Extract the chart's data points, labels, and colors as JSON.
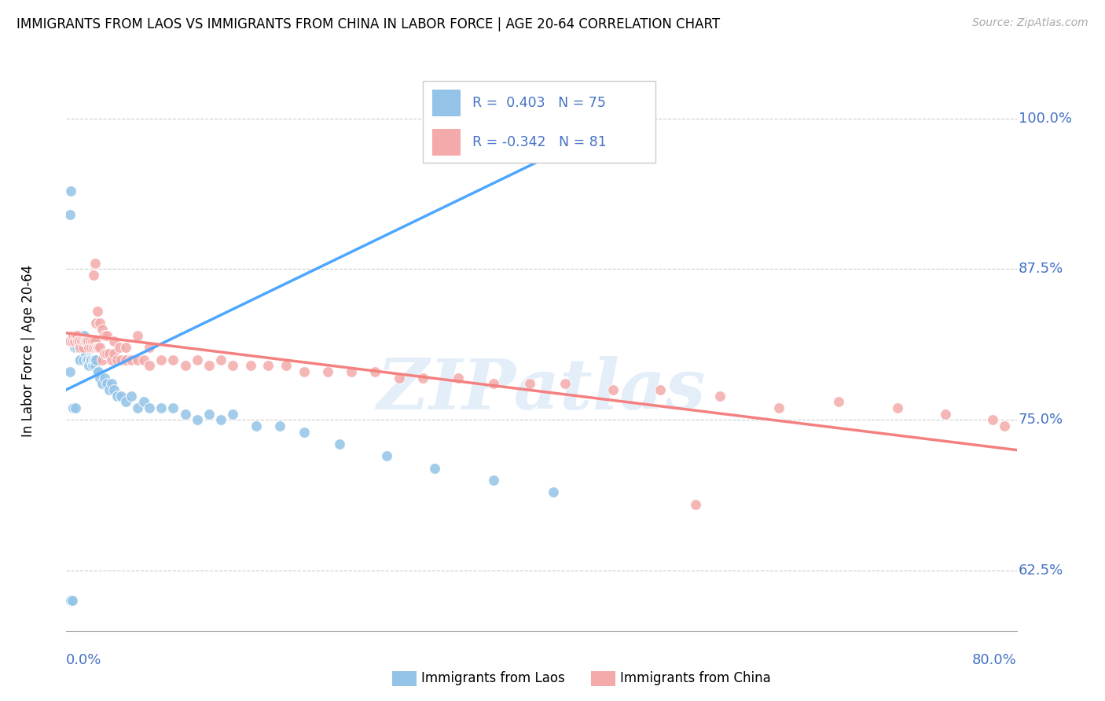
{
  "title": "IMMIGRANTS FROM LAOS VS IMMIGRANTS FROM CHINA IN LABOR FORCE | AGE 20-64 CORRELATION CHART",
  "source": "Source: ZipAtlas.com",
  "ylabel": "In Labor Force | Age 20-64",
  "ytick_labels": [
    "62.5%",
    "75.0%",
    "87.5%",
    "100.0%"
  ],
  "ytick_values": [
    0.625,
    0.75,
    0.875,
    1.0
  ],
  "xmin": 0.0,
  "xmax": 0.8,
  "ymin": 0.575,
  "ymax": 1.04,
  "laos_color": "#93c4e8",
  "china_color": "#f4aaaa",
  "laos_line_color": "#4da6ff",
  "china_line_color": "#f48080",
  "laos_R": 0.403,
  "laos_N": 75,
  "china_R": -0.342,
  "china_N": 81,
  "watermark": "ZIPatlas",
  "laos_scatter_x": [
    0.003,
    0.005,
    0.006,
    0.007,
    0.008,
    0.009,
    0.009,
    0.01,
    0.01,
    0.011,
    0.011,
    0.012,
    0.012,
    0.013,
    0.013,
    0.014,
    0.014,
    0.015,
    0.015,
    0.015,
    0.016,
    0.016,
    0.016,
    0.017,
    0.017,
    0.018,
    0.018,
    0.019,
    0.019,
    0.02,
    0.02,
    0.021,
    0.021,
    0.022,
    0.022,
    0.023,
    0.023,
    0.024,
    0.024,
    0.025,
    0.026,
    0.027,
    0.028,
    0.03,
    0.032,
    0.034,
    0.036,
    0.038,
    0.04,
    0.043,
    0.046,
    0.05,
    0.055,
    0.06,
    0.065,
    0.07,
    0.08,
    0.09,
    0.1,
    0.11,
    0.12,
    0.13,
    0.14,
    0.16,
    0.18,
    0.2,
    0.23,
    0.27,
    0.31,
    0.36,
    0.41,
    0.003,
    0.004,
    0.004,
    0.005
  ],
  "laos_scatter_y": [
    0.79,
    0.82,
    0.76,
    0.81,
    0.76,
    0.82,
    0.81,
    0.82,
    0.815,
    0.81,
    0.8,
    0.815,
    0.8,
    0.81,
    0.82,
    0.815,
    0.8,
    0.82,
    0.81,
    0.815,
    0.815,
    0.805,
    0.81,
    0.8,
    0.815,
    0.81,
    0.8,
    0.81,
    0.795,
    0.81,
    0.8,
    0.81,
    0.8,
    0.81,
    0.795,
    0.8,
    0.81,
    0.8,
    0.795,
    0.8,
    0.79,
    0.79,
    0.785,
    0.78,
    0.785,
    0.78,
    0.775,
    0.78,
    0.775,
    0.77,
    0.77,
    0.765,
    0.77,
    0.76,
    0.765,
    0.76,
    0.76,
    0.76,
    0.755,
    0.75,
    0.755,
    0.75,
    0.755,
    0.745,
    0.745,
    0.74,
    0.73,
    0.72,
    0.71,
    0.7,
    0.69,
    0.92,
    0.94,
    0.6,
    0.6
  ],
  "china_scatter_x": [
    0.003,
    0.005,
    0.006,
    0.007,
    0.008,
    0.009,
    0.01,
    0.011,
    0.012,
    0.013,
    0.014,
    0.015,
    0.016,
    0.017,
    0.018,
    0.019,
    0.02,
    0.021,
    0.022,
    0.023,
    0.024,
    0.025,
    0.026,
    0.027,
    0.028,
    0.03,
    0.032,
    0.034,
    0.036,
    0.038,
    0.04,
    0.043,
    0.046,
    0.05,
    0.055,
    0.06,
    0.065,
    0.07,
    0.08,
    0.09,
    0.1,
    0.11,
    0.12,
    0.13,
    0.14,
    0.155,
    0.17,
    0.185,
    0.2,
    0.22,
    0.24,
    0.26,
    0.28,
    0.3,
    0.33,
    0.36,
    0.39,
    0.42,
    0.46,
    0.5,
    0.55,
    0.6,
    0.65,
    0.7,
    0.74,
    0.78,
    0.79,
    0.023,
    0.024,
    0.025,
    0.026,
    0.028,
    0.03,
    0.032,
    0.034,
    0.04,
    0.045,
    0.05,
    0.06,
    0.07,
    0.53
  ],
  "china_scatter_y": [
    0.815,
    0.815,
    0.82,
    0.815,
    0.82,
    0.82,
    0.815,
    0.815,
    0.81,
    0.815,
    0.81,
    0.815,
    0.815,
    0.815,
    0.815,
    0.81,
    0.815,
    0.81,
    0.815,
    0.81,
    0.815,
    0.81,
    0.81,
    0.81,
    0.81,
    0.8,
    0.805,
    0.805,
    0.805,
    0.8,
    0.805,
    0.8,
    0.8,
    0.8,
    0.8,
    0.8,
    0.8,
    0.795,
    0.8,
    0.8,
    0.795,
    0.8,
    0.795,
    0.8,
    0.795,
    0.795,
    0.795,
    0.795,
    0.79,
    0.79,
    0.79,
    0.79,
    0.785,
    0.785,
    0.785,
    0.78,
    0.78,
    0.78,
    0.775,
    0.775,
    0.77,
    0.76,
    0.765,
    0.76,
    0.755,
    0.75,
    0.745,
    0.87,
    0.88,
    0.83,
    0.84,
    0.83,
    0.825,
    0.82,
    0.82,
    0.815,
    0.81,
    0.81,
    0.82,
    0.81,
    0.68
  ]
}
